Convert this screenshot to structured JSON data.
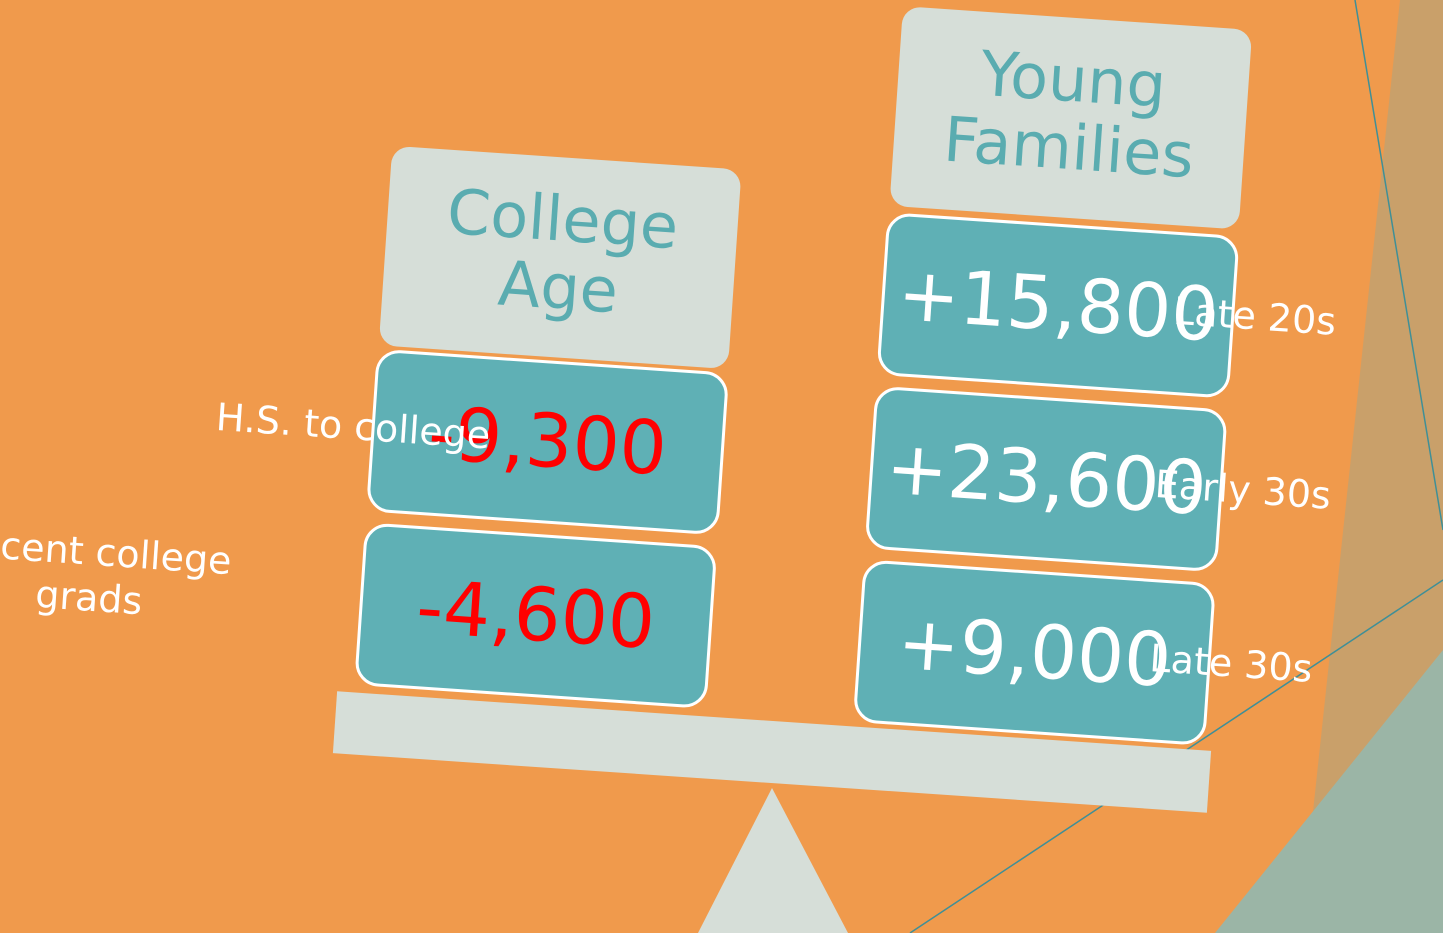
{
  "left": {
    "title_lines": [
      "College",
      "Age"
    ],
    "rows": [
      {
        "value": "-9,300",
        "label_lines": [
          "H.S. to college"
        ]
      },
      {
        "value": "-4,600",
        "label_lines": [
          "Recent college",
          "grads"
        ]
      }
    ]
  },
  "right": {
    "title_lines": [
      "Young",
      "Families"
    ],
    "rows": [
      {
        "value": "+15,800",
        "label_lines": [
          "Late 20s"
        ]
      },
      {
        "value": "+23,600",
        "label_lines": [
          "Early 30s"
        ]
      },
      {
        "value": "+9,000",
        "label_lines": [
          "Late 30s"
        ]
      }
    ]
  }
}
